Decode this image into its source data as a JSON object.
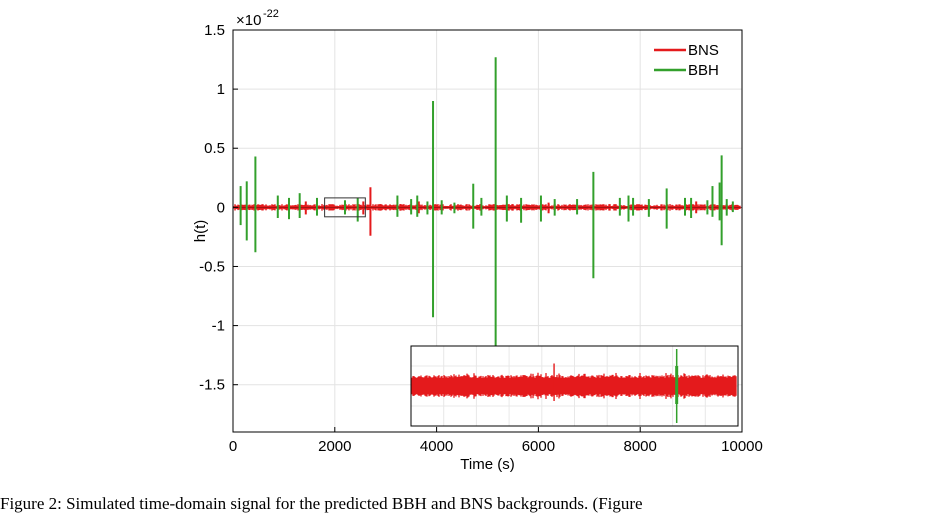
{
  "chart_data": {
    "type": "line",
    "xlabel": "Time (s)",
    "ylabel": "h(t)",
    "exponent_base": "×10",
    "exponent_power": "-22",
    "xlim": [
      0,
      10000
    ],
    "ylim": [
      -1.9,
      1.5
    ],
    "xticks": [
      0,
      2000,
      4000,
      6000,
      8000,
      10000
    ],
    "xtick_labels": [
      "0",
      "2000",
      "4000",
      "6000",
      "8000",
      "10000"
    ],
    "yticks": [
      -1.5,
      -1,
      -0.5,
      0,
      0.5,
      1,
      1.5
    ],
    "ytick_labels": [
      "-1.5",
      "-1",
      "-0.5",
      "0",
      "0.5",
      "1",
      "1.5"
    ],
    "grid": true,
    "legend_position": "top-right",
    "series": [
      {
        "name": "BNS",
        "color": "#e41a1c",
        "noise_amplitude": 0.02,
        "spikes": [
          {
            "x": 2700,
            "up": 0.17,
            "down": -0.24
          },
          {
            "x": 2560,
            "up": 0.05,
            "down": -0.06
          },
          {
            "x": 1430,
            "up": 0.05,
            "down": -0.06
          },
          {
            "x": 3650,
            "up": 0.05,
            "down": -0.05
          },
          {
            "x": 6200,
            "up": 0.04,
            "down": -0.05
          },
          {
            "x": 9100,
            "up": 0.05,
            "down": -0.05
          }
        ]
      },
      {
        "name": "BBH",
        "color": "#33a02c",
        "spikes": [
          {
            "x": 150,
            "up": 0.18,
            "down": -0.15
          },
          {
            "x": 270,
            "up": 0.22,
            "down": -0.28
          },
          {
            "x": 440,
            "up": 0.43,
            "down": -0.38
          },
          {
            "x": 880,
            "up": 0.1,
            "down": -0.09
          },
          {
            "x": 1100,
            "up": 0.08,
            "down": -0.1
          },
          {
            "x": 1310,
            "up": 0.12,
            "down": -0.09
          },
          {
            "x": 1650,
            "up": 0.08,
            "down": -0.07
          },
          {
            "x": 2200,
            "up": 0.06,
            "down": -0.06
          },
          {
            "x": 2450,
            "up": 0.08,
            "down": -0.12
          },
          {
            "x": 3230,
            "up": 0.1,
            "down": -0.08
          },
          {
            "x": 3500,
            "up": 0.07,
            "down": -0.06
          },
          {
            "x": 3620,
            "up": 0.1,
            "down": -0.08
          },
          {
            "x": 3820,
            "up": 0.05,
            "down": -0.06
          },
          {
            "x": 3930,
            "up": 0.9,
            "down": -0.93
          },
          {
            "x": 4100,
            "up": 0.06,
            "down": -0.06
          },
          {
            "x": 4350,
            "up": 0.04,
            "down": -0.05
          },
          {
            "x": 4720,
            "up": 0.2,
            "down": -0.18
          },
          {
            "x": 4880,
            "up": 0.08,
            "down": -0.07
          },
          {
            "x": 5160,
            "up": 1.27,
            "down": -1.17
          },
          {
            "x": 5380,
            "up": 0.1,
            "down": -0.12
          },
          {
            "x": 5660,
            "up": 0.08,
            "down": -0.13
          },
          {
            "x": 6050,
            "up": 0.1,
            "down": -0.12
          },
          {
            "x": 6320,
            "up": 0.07,
            "down": -0.07
          },
          {
            "x": 6760,
            "up": 0.07,
            "down": -0.06
          },
          {
            "x": 7080,
            "up": 0.3,
            "down": -0.6
          },
          {
            "x": 7600,
            "up": 0.08,
            "down": -0.07
          },
          {
            "x": 7770,
            "up": 0.1,
            "down": -0.12
          },
          {
            "x": 7860,
            "up": 0.08,
            "down": -0.07
          },
          {
            "x": 8170,
            "up": 0.07,
            "down": -0.08
          },
          {
            "x": 8520,
            "up": 0.16,
            "down": -0.18
          },
          {
            "x": 8880,
            "up": 0.08,
            "down": -0.07
          },
          {
            "x": 9000,
            "up": 0.08,
            "down": -0.09
          },
          {
            "x": 9320,
            "up": 0.06,
            "down": -0.06
          },
          {
            "x": 9420,
            "up": 0.18,
            "down": -0.08
          },
          {
            "x": 9560,
            "up": 0.21,
            "down": -0.11
          },
          {
            "x": 9600,
            "up": 0.44,
            "down": -0.32
          },
          {
            "x": 9700,
            "up": 0.07,
            "down": -0.07
          },
          {
            "x": 9820,
            "up": 0.05,
            "down": -0.04
          }
        ]
      }
    ],
    "zoom_box": {
      "x": [
        1800,
        2600
      ],
      "y": [
        -0.08,
        0.08
      ]
    },
    "inset": {
      "xlim": [
        1800,
        2600
      ],
      "ylim": [
        -0.08,
        0.08
      ],
      "bns_spike_x": 2150,
      "bbh_spike_x": 2450
    }
  },
  "caption": "Figure 2: Simulated time-domain signal for the predicted BBH and BNS backgrounds. (Figure"
}
